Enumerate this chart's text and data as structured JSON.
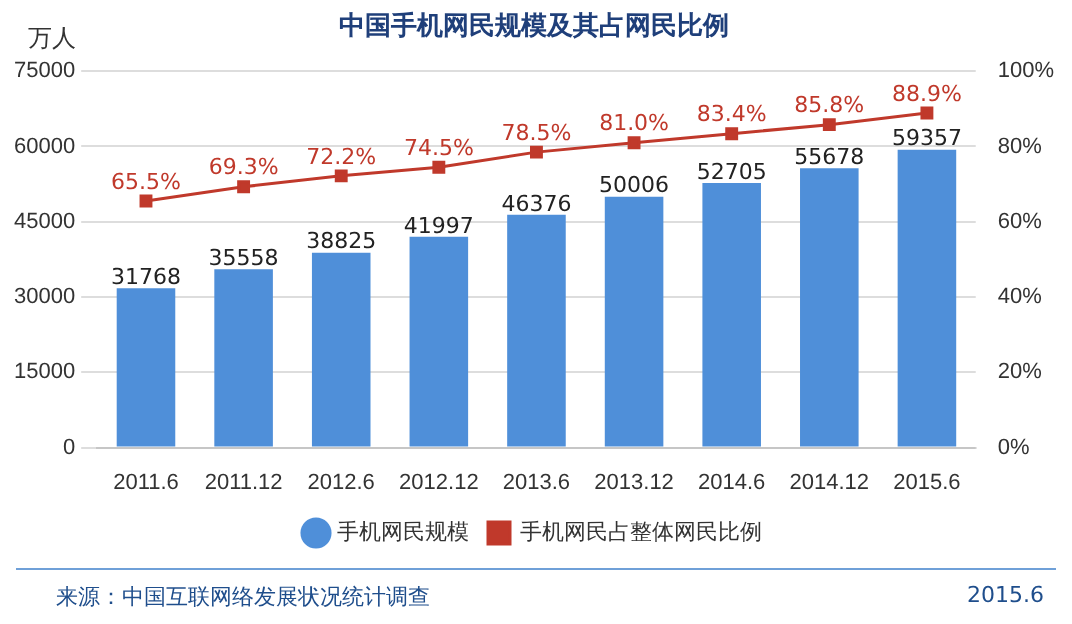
{
  "chart_data": {
    "type": "bar",
    "title": "中国手机网民规模及其占网民比例",
    "ylabel": "万人",
    "categories": [
      "2011.6",
      "2011.12",
      "2012.6",
      "2012.12",
      "2013.6",
      "2013.12",
      "2014.6",
      "2014.12",
      "2015.6"
    ],
    "series": [
      {
        "name": "手机网民规模",
        "color": "#4f8fd9",
        "values": [
          31768,
          35558,
          38825,
          41997,
          46376,
          50006,
          52705,
          55678,
          59357
        ],
        "value_labels": [
          "31768",
          "35558",
          "38825",
          "41997",
          "46376",
          "50006",
          "52705",
          "55678",
          "59357"
        ]
      },
      {
        "name": "手机网民占整体网民比例",
        "type": "line",
        "axis": "y2",
        "color": "#c0392b",
        "marker": "square",
        "line_style": "solid",
        "values": [
          65.5,
          69.3,
          72.2,
          74.5,
          78.5,
          81.0,
          83.4,
          85.8,
          88.9
        ],
        "value_labels": [
          "65.5%",
          "69.3%",
          "72.2%",
          "74.5%",
          "78.5%",
          "81.0%",
          "83.4%",
          "85.8%",
          "88.9%"
        ]
      }
    ],
    "ylim": [
      0,
      75000
    ],
    "yticks": [
      0,
      15000,
      30000,
      45000,
      60000,
      75000
    ],
    "y2lim": [
      0,
      100
    ],
    "y2ticks": [
      {
        "value": 0,
        "label": "0%"
      },
      {
        "value": 20,
        "label": "20%"
      },
      {
        "value": 40,
        "label": "40%"
      },
      {
        "value": 60,
        "label": "60%"
      },
      {
        "value": 80,
        "label": "80%"
      },
      {
        "value": 100,
        "label": "100%"
      }
    ],
    "grid": "y",
    "legend": "bottom",
    "annotations": [
      "来源：中国互联网络发展状况统计调查",
      "2015.6"
    ]
  }
}
